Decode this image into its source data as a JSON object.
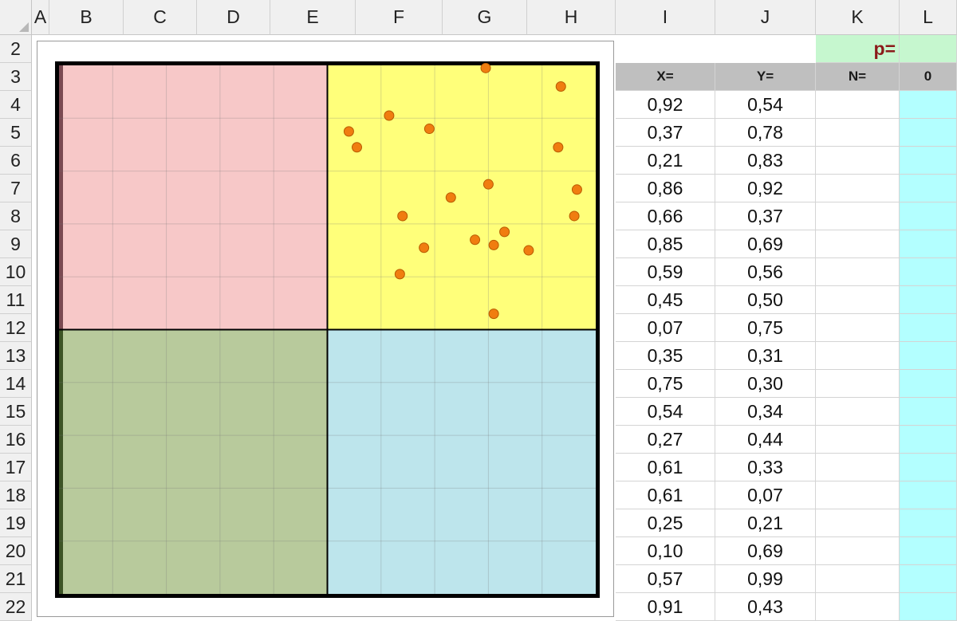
{
  "sheet": {
    "columns": [
      "A",
      "B",
      "C",
      "D",
      "E",
      "F",
      "G",
      "H",
      "I",
      "J",
      "K",
      "L"
    ],
    "rows": [
      "2",
      "3",
      "4",
      "5",
      "6",
      "7",
      "8",
      "9",
      "10",
      "11",
      "12",
      "13",
      "14",
      "15",
      "16",
      "17",
      "18",
      "19",
      "20",
      "21",
      "22"
    ],
    "p_label": "p=",
    "headers": {
      "x": "X=",
      "y": "Y=",
      "n": "N=",
      "l3": "0"
    },
    "table": [
      [
        "0,92",
        "0,54"
      ],
      [
        "0,37",
        "0,78"
      ],
      [
        "0,21",
        "0,83"
      ],
      [
        "0,86",
        "0,92"
      ],
      [
        "0,66",
        "0,37"
      ],
      [
        "0,85",
        "0,69"
      ],
      [
        "0,59",
        "0,56"
      ],
      [
        "0,45",
        "0,50"
      ],
      [
        "0,07",
        "0,75"
      ],
      [
        "0,35",
        "0,31"
      ],
      [
        "0,75",
        "0,30"
      ],
      [
        "0,54",
        "0,34"
      ],
      [
        "0,27",
        "0,44"
      ],
      [
        "0,61",
        "0,33"
      ],
      [
        "0,61",
        "0,07"
      ],
      [
        "0,25",
        "0,21"
      ],
      [
        "0,10",
        "0,69"
      ],
      [
        "0,57",
        "0,99"
      ],
      [
        "0,91",
        "0,43"
      ]
    ],
    "colors": {
      "header_gray": "#bfbfbf",
      "green_cell": "#c6f7cf",
      "cyan_cell": "#b3ffff",
      "p_color": "#8b1a1a"
    }
  },
  "chart_data": {
    "type": "scatter",
    "xlim": [
      -1,
      1
    ],
    "ylim": [
      -1,
      1
    ],
    "grid": true,
    "quadrant_colors": {
      "top_left": "#f7c8c8",
      "top_right": "#ffff7a",
      "bottom_left": "#b8ca9c",
      "bottom_right": "#bde5ec"
    },
    "marker_color": "#f07d10",
    "points": [
      [
        0.59,
        0.99
      ],
      [
        0.87,
        0.92
      ],
      [
        0.23,
        0.81
      ],
      [
        0.38,
        0.76
      ],
      [
        0.08,
        0.75
      ],
      [
        0.11,
        0.69
      ],
      [
        0.86,
        0.69
      ],
      [
        0.6,
        0.55
      ],
      [
        0.46,
        0.5
      ],
      [
        0.93,
        0.53
      ],
      [
        0.28,
        0.43
      ],
      [
        0.92,
        0.43
      ],
      [
        0.66,
        0.37
      ],
      [
        0.55,
        0.34
      ],
      [
        0.62,
        0.32
      ],
      [
        0.36,
        0.31
      ],
      [
        0.75,
        0.3
      ],
      [
        0.27,
        0.21
      ],
      [
        0.62,
        0.06
      ]
    ]
  }
}
